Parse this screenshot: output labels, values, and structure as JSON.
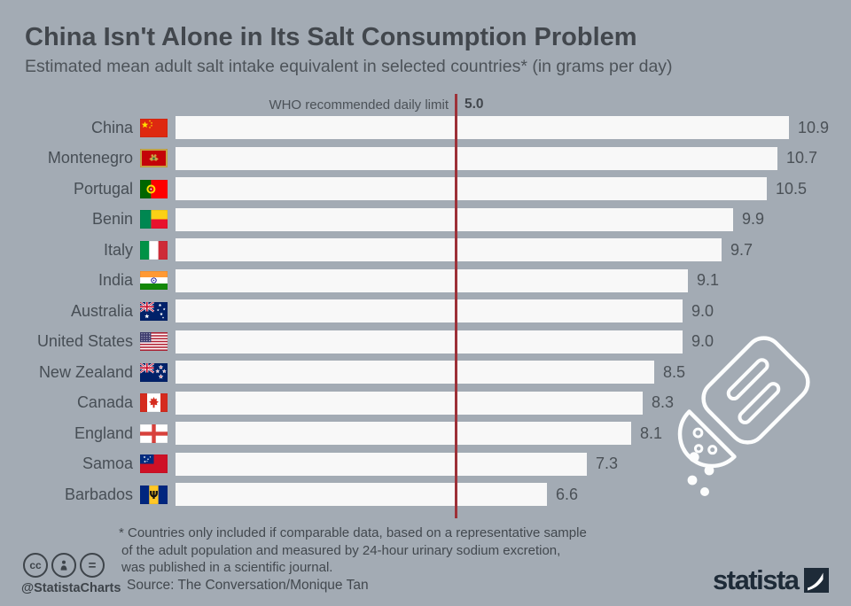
{
  "title": "China Isn't Alone in Its Salt Consumption Problem",
  "subtitle": "Estimated mean adult salt intake equivalent in selected countries* (in grams per day)",
  "reference": {
    "label": "WHO recommended daily limit",
    "value_label": "5.0"
  },
  "rows": [
    {
      "label": "China",
      "flag": "flag-china",
      "value": "10.9"
    },
    {
      "label": "Montenegro",
      "flag": "flag-montenegro",
      "value": "10.7"
    },
    {
      "label": "Portugal",
      "flag": "flag-portugal",
      "value": "10.5"
    },
    {
      "label": "Benin",
      "flag": "flag-benin",
      "value": "9.9"
    },
    {
      "label": "Italy",
      "flag": "flag-italy",
      "value": "9.7"
    },
    {
      "label": "India",
      "flag": "flag-india",
      "value": "9.1"
    },
    {
      "label": "Australia",
      "flag": "flag-australia",
      "value": "9.0"
    },
    {
      "label": "United States",
      "flag": "flag-united-states",
      "value": "9.0"
    },
    {
      "label": "New Zealand",
      "flag": "flag-new-zealand",
      "value": "8.5"
    },
    {
      "label": "Canada",
      "flag": "flag-canada",
      "value": "8.3"
    },
    {
      "label": "England",
      "flag": "flag-england",
      "value": "8.1"
    },
    {
      "label": "Samoa",
      "flag": "flag-samoa",
      "value": "7.3"
    },
    {
      "label": "Barbados",
      "flag": "flag-barbados",
      "value": "6.6"
    }
  ],
  "chart_data": {
    "type": "bar",
    "orientation": "horizontal",
    "title": "China Isn't Alone in Its Salt Consumption Problem",
    "subtitle": "Estimated mean adult salt intake equivalent in selected countries* (in grams per day)",
    "unit": "grams per day",
    "categories": [
      "China",
      "Montenegro",
      "Portugal",
      "Benin",
      "Italy",
      "India",
      "Australia",
      "United States",
      "New Zealand",
      "Canada",
      "England",
      "Samoa",
      "Barbados"
    ],
    "values": [
      10.9,
      10.7,
      10.5,
      9.9,
      9.7,
      9.1,
      9.0,
      9.0,
      8.5,
      8.3,
      8.1,
      7.3,
      6.6
    ],
    "reference_line": {
      "label": "WHO recommended daily limit",
      "value": 5.0
    },
    "xlim": [
      0,
      10.9
    ],
    "grid": false,
    "value_labels": true,
    "legend": "none"
  },
  "footnote": {
    "line1": "* Countries only included if comparable data, based on a representative sample",
    "line2": "of the adult population and measured by 24-hour urinary sodium excretion,",
    "line3": "was published in a scientific journal."
  },
  "source": "Source: The Conversation/Monique Tan",
  "branding": {
    "handle": "@StatistaCharts",
    "logo_text": "statista",
    "cc_icons": [
      "cc-icon",
      "attribution-icon",
      "equal-icon"
    ]
  },
  "icons": {
    "illustration": "salt-shaker-icon"
  },
  "colors": {
    "background": "#a3abb4",
    "bar": "#f8f8f8",
    "reference_line": "#9d3138",
    "title_text": "#42474d",
    "body_text": "#474e55",
    "logo": "#1e2b38"
  }
}
